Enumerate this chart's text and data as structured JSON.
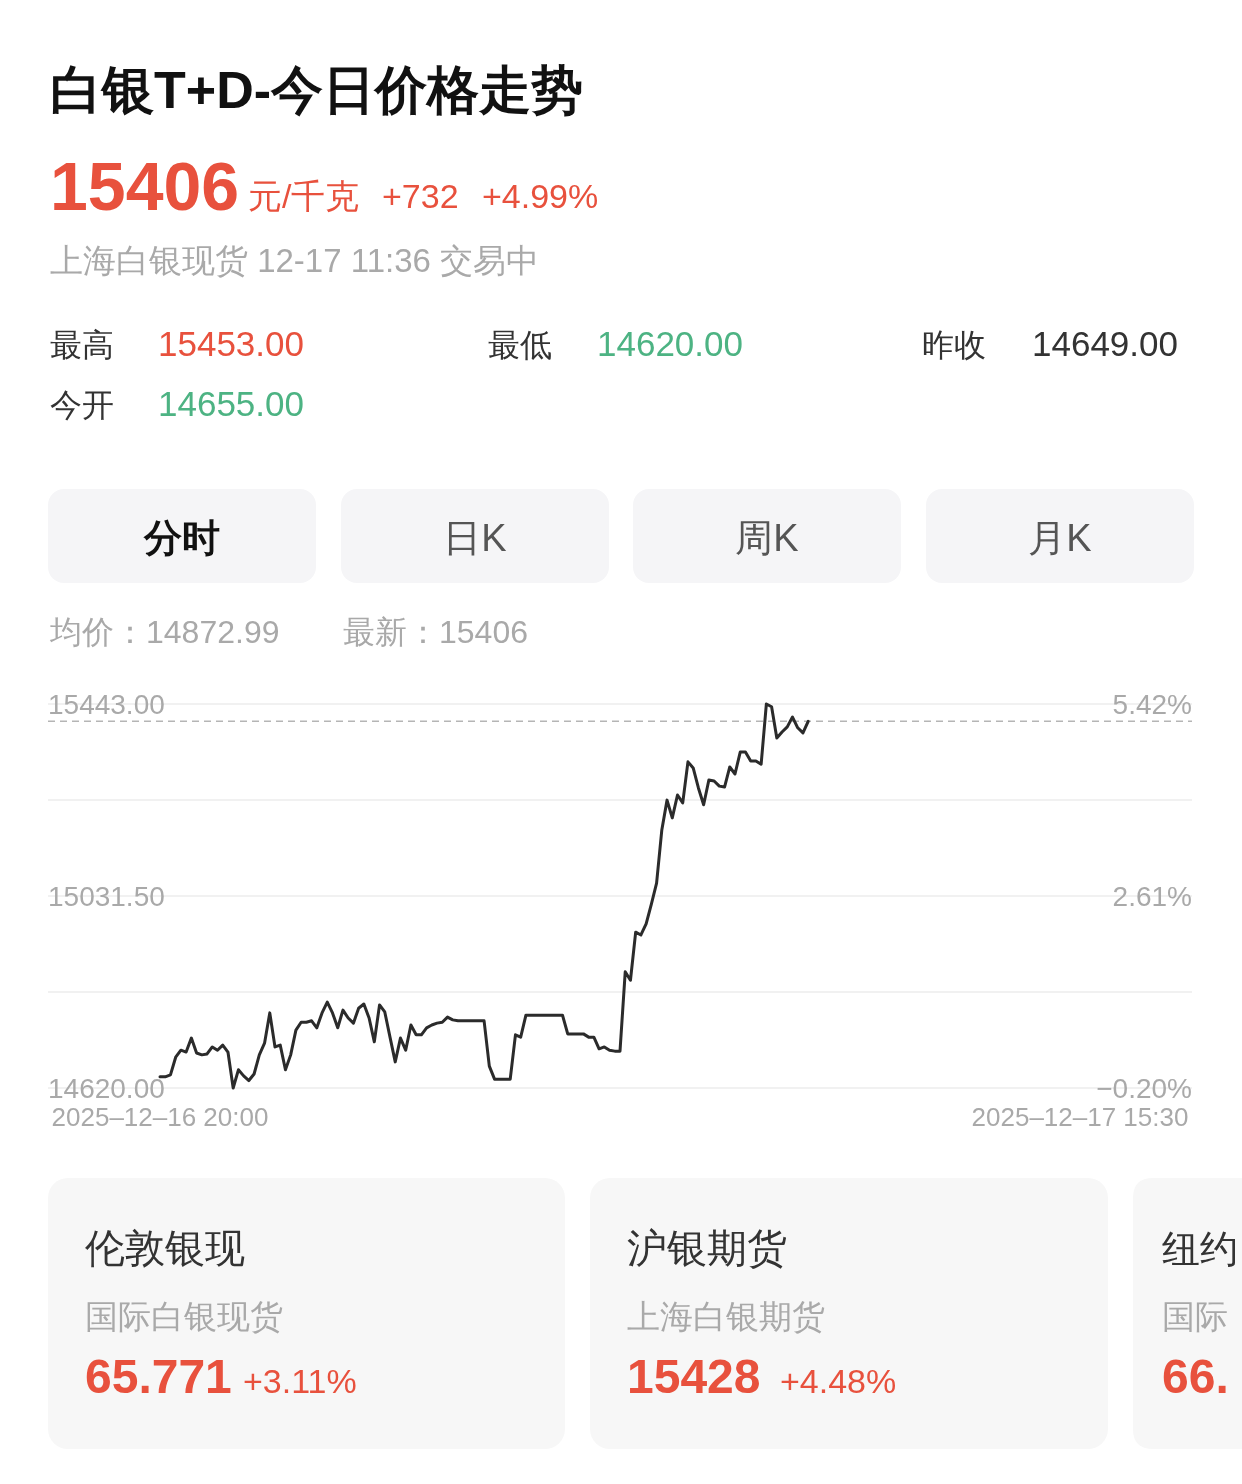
{
  "chart_data": {
    "type": "line",
    "title": "白银T+D-今日价格走势",
    "subtitle": "上海白银现货 12-17 11:36 交易中",
    "annotations": [
      "15406",
      "元/千克",
      "+732",
      "+4.99%",
      "最高",
      "15453.00",
      "最低",
      "14620.00",
      "昨收",
      "14649.00",
      "今开",
      "14655.00",
      "分时",
      "日K",
      "周K",
      "月K",
      "均价：14872.99",
      "最新：15406",
      "伦敦银现",
      "国际白银现货",
      "65.771",
      "+3.11%",
      "沪银期货",
      "上海白银期货",
      "15428",
      "+4.48%",
      "纽约",
      "国际",
      "66."
    ],
    "categories": [
      "2025–12–16 20:00",
      null,
      null,
      null,
      null,
      null,
      null,
      null,
      null,
      null,
      null,
      null,
      null,
      null,
      null,
      null,
      null,
      null,
      null,
      null,
      null,
      null,
      null,
      null,
      null,
      null,
      null,
      null,
      null,
      null,
      null,
      null,
      null,
      null,
      null,
      null,
      null,
      null,
      null,
      null,
      null,
      null,
      null,
      null,
      null,
      null,
      null,
      null,
      null,
      null,
      null,
      null,
      null,
      null,
      null,
      null,
      null,
      null,
      null,
      null,
      null,
      null,
      null,
      null,
      null,
      null,
      null,
      null,
      null,
      null,
      null,
      null,
      null,
      null,
      null,
      null,
      null,
      null,
      null,
      null,
      null,
      null,
      null,
      null,
      null,
      null,
      null,
      null,
      null,
      null,
      null,
      null,
      null,
      null,
      null,
      null,
      null,
      null,
      null,
      null,
      null,
      null,
      null,
      null,
      null,
      null,
      null,
      null,
      null,
      null,
      null,
      null,
      null,
      null,
      null,
      null,
      null,
      null,
      null,
      null,
      null,
      null,
      null,
      null,
      null,
      null,
      null,
      null,
      null,
      null,
      null,
      null,
      null,
      null,
      null,
      null,
      null,
      null,
      null,
      null,
      null,
      null,
      null,
      null,
      null,
      null,
      null,
      null,
      null,
      null,
      null,
      null,
      null,
      null,
      null,
      null,
      null,
      null,
      null,
      null,
      null,
      null,
      null,
      null,
      null,
      null,
      null,
      null,
      null,
      null,
      null,
      null,
      null,
      null,
      null,
      null,
      "2025–12–17 15:30"
    ],
    "values": [
      14644,
      14644,
      14648,
      14686,
      14701,
      14697,
      14727,
      14695,
      14691,
      14693,
      14708,
      14701,
      14712,
      14697,
      14620,
      14659,
      14646,
      14636,
      14650,
      14691,
      14716,
      14781,
      14708,
      14712,
      14659,
      14691,
      14744,
      14761,
      14761,
      14764,
      14749,
      14781,
      14804,
      14781,
      14749,
      14787,
      14770,
      14759,
      14791,
      14800,
      14770,
      14719,
      14798,
      14783,
      14729,
      14676,
      14727,
      14701,
      14755,
      14734,
      14734,
      14749,
      14755,
      14759,
      14761,
      14772,
      14766,
      14764,
      14764,
      14764,
      14764,
      14764,
      14764,
      14667,
      14639,
      14639,
      14639,
      14639,
      14734,
      14729,
      14776,
      14776,
      14776,
      14776,
      14776,
      14776,
      14776,
      14776,
      14736,
      14736,
      14736,
      14736,
      14729,
      14729,
      14704,
      14708,
      14701,
      14699,
      14699,
      14869,
      14851,
      14954,
      14948,
      14972,
      15014,
      15059,
      15173,
      15237,
      15199,
      15248,
      15231,
      15319,
      15306,
      15263,
      15227,
      15280,
      15278,
      15267,
      15265,
      15308,
      15293,
      15340,
      15340,
      15321,
      15321,
      15314,
      15443,
      15437,
      15370,
      15383,
      15394,
      15415,
      15392,
      15381,
      15406,
      null,
      null,
      null,
      null,
      null,
      null,
      null,
      null,
      null,
      null,
      null,
      null,
      null,
      null,
      null,
      null,
      null,
      null,
      null,
      null,
      null,
      null,
      null,
      null,
      null,
      null,
      null,
      null,
      null,
      null,
      null,
      null,
      null,
      null,
      null,
      null,
      null,
      null,
      null,
      null,
      null,
      null,
      null,
      null,
      null,
      null,
      null,
      null,
      null,
      null,
      null,
      null
    ],
    "color": "#2b2b2b",
    "ylim": [
      14620,
      15443
    ],
    "yticks": [
      {
        "value": 14620,
        "label": "14620.00"
      },
      {
        "value": 14825.75,
        "label": null
      },
      {
        "value": 15031.5,
        "label": "15031.50"
      },
      {
        "value": 15237.25,
        "label": null
      },
      {
        "value": 15443,
        "label": "15443.00"
      }
    ],
    "y2lim": [
      -0.2,
      5.42
    ],
    "y2ticks": [
      {
        "value": -0.2,
        "label": "−0.20%"
      },
      {
        "value": 2.61,
        "label": "2.61%"
      },
      {
        "value": 5.42,
        "label": "5.42%"
      }
    ],
    "grid": "y",
    "ref_lines": [
      {
        "axis": "y",
        "value": 15406,
        "color": "#b5b5b5",
        "line_style": "dashed"
      }
    ]
  }
}
